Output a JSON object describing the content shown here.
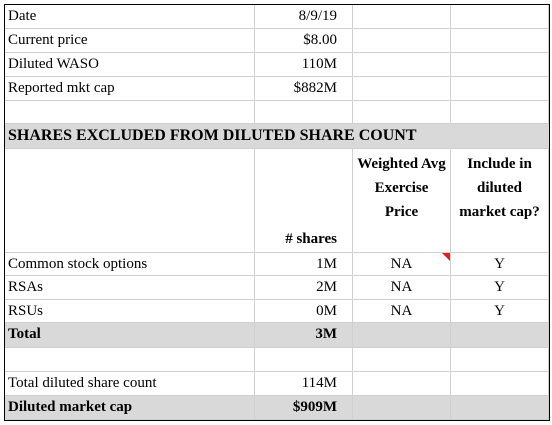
{
  "summary": [
    {
      "label": "Date",
      "value": "8/9/19"
    },
    {
      "label": "Current price",
      "value": "$8.00"
    },
    {
      "label": "Diluted WASO",
      "value": "110M"
    },
    {
      "label": "Reported mkt cap",
      "value": "$882M"
    }
  ],
  "section_title": "SHARES EXCLUDED FROM DILUTED SHARE COUNT",
  "headers": {
    "shares": "# shares",
    "price": "Weighted Avg Exercise Price",
    "include": "Include in diluted market cap?"
  },
  "rows": [
    {
      "label": "Common stock options",
      "shares": "1M",
      "price": "NA",
      "include": "Y"
    },
    {
      "label": "RSAs",
      "shares": "2M",
      "price": "NA",
      "include": "Y"
    },
    {
      "label": "RSUs",
      "shares": "0M",
      "price": "NA",
      "include": "Y"
    }
  ],
  "total": {
    "label": "Total",
    "shares": "3M"
  },
  "diluted_count": {
    "label": "Total diluted share count",
    "value": "114M"
  },
  "diluted_cap": {
    "label": "Diluted market cap",
    "value": "$909M"
  },
  "colors": {
    "shade": "#d9d9d9",
    "comment_flag": "#e02020",
    "gridline": "#d0d0d0"
  }
}
